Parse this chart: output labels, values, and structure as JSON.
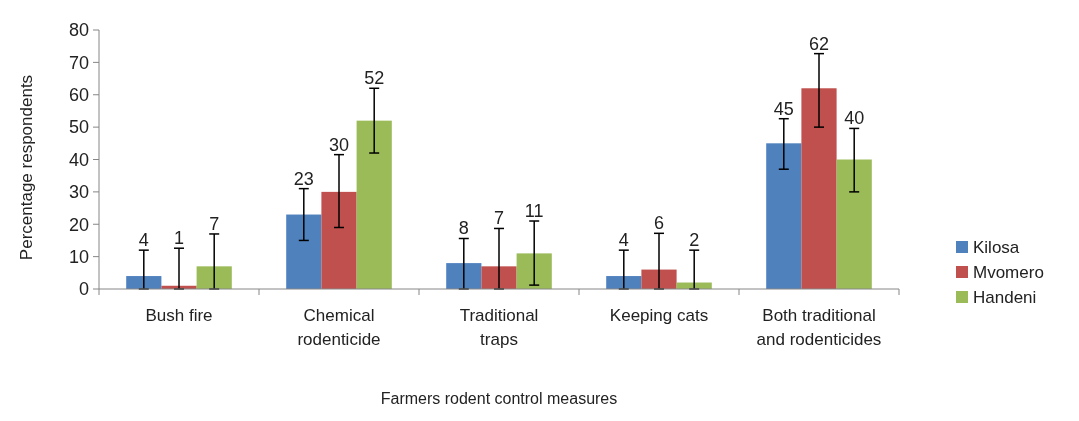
{
  "chart_data": {
    "type": "bar",
    "xlabel": "Farmers rodent control measures",
    "ylabel": "Percentage respondents",
    "categories": [
      "Bush fire",
      "Chemical rodenticide",
      "Traditional traps",
      "Keeping cats",
      "Both traditional and rodenticides"
    ],
    "series": [
      {
        "name": "Kilosa",
        "color": "#4f81bd",
        "values": [
          4,
          23,
          8,
          4,
          45
        ],
        "errors": [
          [
            0,
            12
          ],
          [
            15,
            31
          ],
          [
            0,
            15.6
          ],
          [
            0,
            12
          ],
          [
            37,
            52.6
          ]
        ]
      },
      {
        "name": "Mvomero",
        "color": "#c0504d",
        "values": [
          1,
          30,
          7,
          6,
          62
        ],
        "errors": [
          [
            0,
            12.6
          ],
          [
            19,
            41.5
          ],
          [
            0,
            18.7
          ],
          [
            0,
            17.2
          ],
          [
            50,
            72.7
          ]
        ]
      },
      {
        "name": "Handeni",
        "color": "#9bbb59",
        "values": [
          7,
          52,
          11,
          2,
          40
        ],
        "errors": [
          [
            0,
            17
          ],
          [
            42,
            62
          ],
          [
            1.2,
            21
          ],
          [
            0,
            12
          ],
          [
            30,
            49.6
          ]
        ]
      }
    ],
    "ylim": [
      0,
      80
    ],
    "yticks": [
      0,
      10,
      20,
      30,
      40,
      50,
      60,
      70,
      80
    ],
    "grid": false,
    "legend": "right",
    "data_labels": true
  }
}
